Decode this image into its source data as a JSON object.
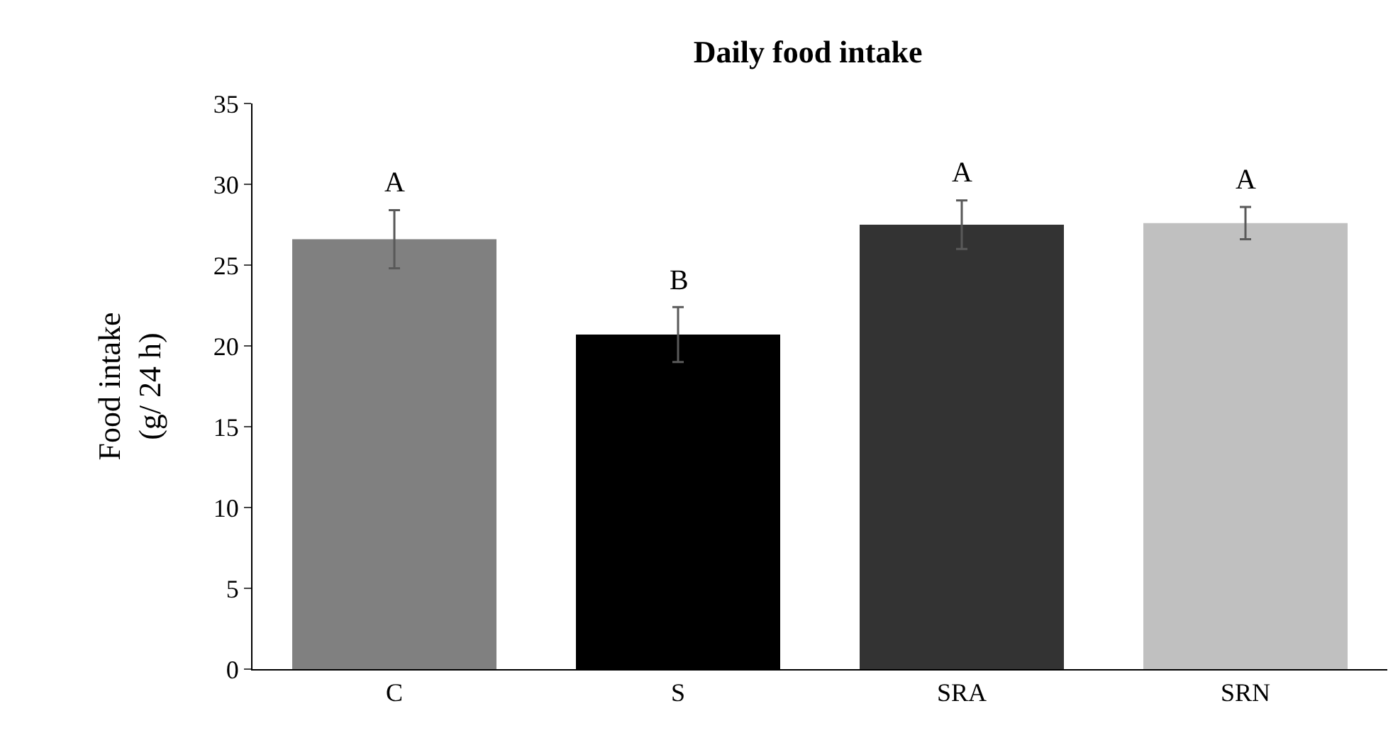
{
  "chart_data": {
    "type": "bar",
    "title": "Daily food intake",
    "ylabel": "Food intake\n(g/ 24 h)",
    "categories": [
      "C",
      "S",
      "SRA",
      "SRN"
    ],
    "values": [
      26.6,
      20.7,
      27.5,
      27.6
    ],
    "errors": [
      1.8,
      1.7,
      1.5,
      1.0
    ],
    "colors": [
      "#808080",
      "#000000",
      "#333333",
      "#c0c0c0"
    ],
    "ylim": [
      0,
      35
    ],
    "yticks": [
      0,
      5,
      10,
      15,
      20,
      25,
      30,
      35
    ],
    "annotations": [
      "A",
      "B",
      "A",
      "A"
    ]
  }
}
